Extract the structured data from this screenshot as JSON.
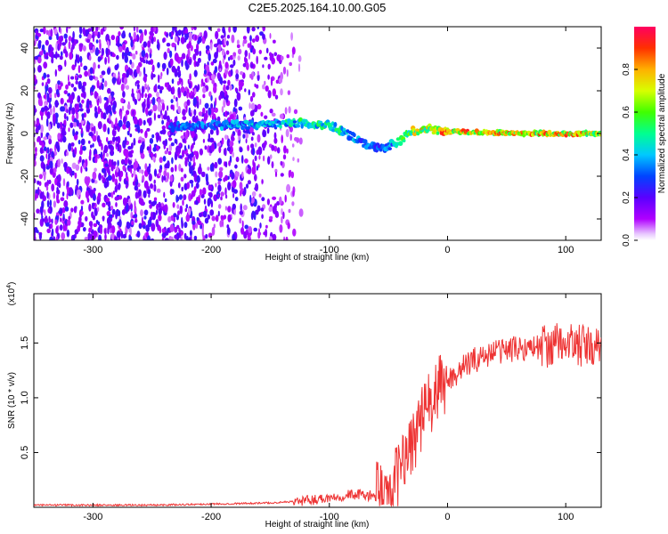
{
  "title": "C2E5.2025.164.10.00.G05",
  "chart_data": [
    {
      "type": "heatmap",
      "xlabel": "Height of straight line (km)",
      "ylabel": "Frequency (Hz)",
      "xlim": [
        -350,
        130
      ],
      "ylim": [
        -50,
        50
      ],
      "xticks": [
        -300,
        -200,
        -100,
        0,
        100
      ],
      "yticks": [
        -40,
        -20,
        0,
        20,
        40
      ],
      "colorbar": {
        "label": "Normalized spectral amplitude",
        "range": [
          0,
          1
        ],
        "ticks": [
          0.0,
          0.2,
          0.4,
          0.6,
          0.8
        ]
      },
      "series": [
        {
          "kind": "signal_track",
          "x": [
            -235,
            -200,
            -150,
            -125,
            -100,
            -85,
            -70,
            -55,
            -42,
            -30,
            -15,
            0,
            50,
            100,
            130
          ],
          "y": [
            3,
            4,
            4,
            5,
            4,
            0,
            -5,
            -7,
            -4,
            1,
            2,
            1,
            0,
            0,
            0
          ],
          "amplitude": [
            0.35,
            0.4,
            0.45,
            0.55,
            0.55,
            0.5,
            0.4,
            0.35,
            0.5,
            0.75,
            0.85,
            0.9,
            0.9,
            0.9,
            0.8
          ]
        }
      ],
      "noise_region": {
        "x": [
          -350,
          -160
        ],
        "y": [
          -50,
          50
        ],
        "amplitude": [
          0.05,
          0.25
        ]
      }
    },
    {
      "type": "line",
      "xlabel": "Height of straight line (km)",
      "ylabel": "SNR (10 * v/v)",
      "scale_label": "(x10",
      "scale_exponent": "4",
      "xlim": [
        -350,
        130
      ],
      "ylim": [
        0,
        1.95
      ],
      "xticks": [
        -300,
        -200,
        -100,
        0,
        100
      ],
      "yticks": [
        0.5,
        1.0,
        1.5
      ],
      "color": "#ee3333",
      "x": [
        -350,
        -300,
        -250,
        -200,
        -150,
        -120,
        -100,
        -80,
        -70,
        -60,
        -50,
        -45,
        -40,
        -35,
        -30,
        -25,
        -20,
        -15,
        -10,
        -5,
        0,
        10,
        20,
        30,
        40,
        50,
        60,
        70,
        80,
        90,
        100,
        110,
        120,
        130
      ],
      "values": [
        0.02,
        0.02,
        0.02,
        0.03,
        0.04,
        0.06,
        0.09,
        0.12,
        0.11,
        0.1,
        0.13,
        0.2,
        0.32,
        0.48,
        0.62,
        0.72,
        0.85,
        0.95,
        1.02,
        1.1,
        1.15,
        1.25,
        1.33,
        1.38,
        1.42,
        1.44,
        1.45,
        1.46,
        1.47,
        1.48,
        1.5,
        1.48,
        1.45,
        1.44
      ]
    }
  ]
}
